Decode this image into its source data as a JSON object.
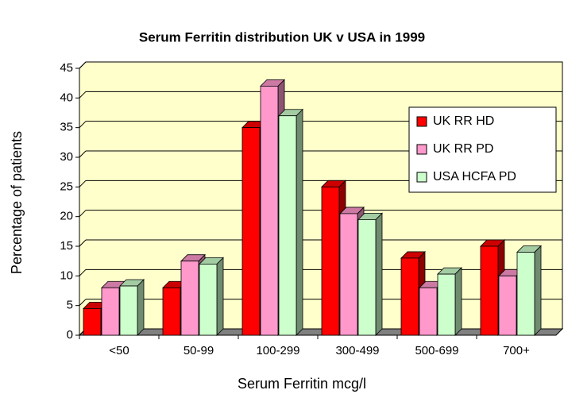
{
  "chart_data": {
    "type": "bar3d",
    "title": "Serum Ferritin distribution UK v USA in 1999",
    "x_label": "Serum Ferritin mcg/l",
    "y_label": "Percentage of patients",
    "categories": [
      "<50",
      "50-99",
      "100-299",
      "300-499",
      "500-699",
      "700+"
    ],
    "series": [
      {
        "name": "UK RR HD",
        "color": "#ff0000",
        "values": [
          4.5,
          8,
          35,
          25,
          13,
          15
        ]
      },
      {
        "name": "UK RR PD",
        "color": "#ff99cc",
        "values": [
          8,
          12.5,
          42,
          20.5,
          8,
          10
        ]
      },
      {
        "name": "USA HCFA PD",
        "color": "#ccffcc",
        "values": [
          8.3,
          12,
          37,
          19.5,
          10.3,
          14
        ]
      }
    ],
    "ylim": [
      0,
      45
    ],
    "yticks": [
      0,
      5,
      10,
      15,
      20,
      25,
      30,
      35,
      40,
      45
    ],
    "grid": true,
    "legend": "right"
  }
}
